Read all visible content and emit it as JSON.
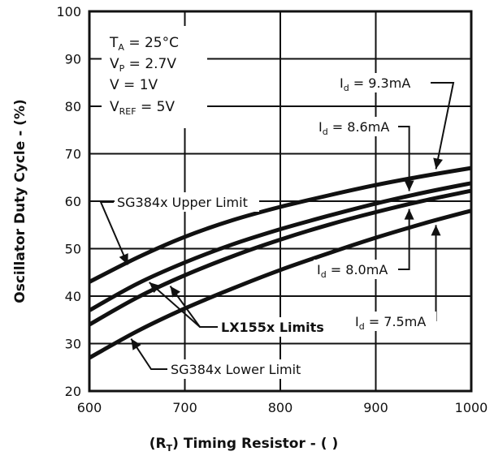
{
  "chart_data": {
    "type": "line",
    "title": "",
    "xlabel": "(R_T)  Timing Resistor - (  )",
    "xlabel_parts": {
      "open": "(R",
      "sub": "T",
      "close": ")  Timing Resistor - (  )"
    },
    "ylabel": "Oscillator Duty Cycle - (%)",
    "xlim": [
      600,
      1000
    ],
    "ylim": [
      20,
      100
    ],
    "xticks": [
      600,
      700,
      800,
      900,
      1000
    ],
    "yticks": [
      20,
      30,
      40,
      50,
      60,
      70,
      80,
      90,
      100
    ],
    "grid": true,
    "x": [
      600,
      650,
      700,
      750,
      800,
      850,
      900,
      950,
      1000
    ],
    "series": [
      {
        "values": [
          43,
          48.1,
          52.5,
          56,
          58.8,
          61.2,
          63.4,
          65.3,
          67
        ]
      },
      {
        "values": [
          37,
          42.6,
          47.1,
          50.9,
          54.1,
          56.9,
          59.5,
          61.8,
          63.8
        ]
      },
      {
        "values": [
          34,
          39.7,
          44.4,
          48.4,
          51.9,
          55,
          57.7,
          60.1,
          62.2
        ]
      },
      {
        "values": [
          27,
          32.6,
          37.4,
          41.6,
          45.5,
          49,
          52.3,
          55.3,
          58
        ]
      }
    ],
    "conditions": [
      {
        "main": "T",
        "sub": "A",
        "rest": " = 25°C"
      },
      {
        "main": "V",
        "sub": "P",
        "rest": " = 2.7V"
      },
      {
        "main": "V",
        "sub": "",
        "rest": "  = 1V"
      },
      {
        "main": "V",
        "sub": "REF",
        "rest": " = 5V"
      }
    ],
    "annotations": {
      "id93": {
        "main": "I",
        "sub": "d",
        "rest": " = 9.3mA"
      },
      "id86": {
        "main": "I",
        "sub": "d",
        "rest": " = 8.6mA"
      },
      "id80": {
        "main": "I",
        "sub": "d",
        "rest": " = 8.0mA"
      },
      "id75": {
        "main": "I",
        "sub": "d",
        "rest": " = 7.5mA"
      },
      "upper": "SG384x Upper Limit",
      "lx155": "LX155x Limits",
      "lower": "SG384x Lower Limit"
    }
  }
}
